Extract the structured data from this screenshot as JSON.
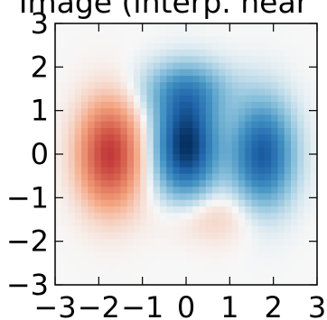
{
  "chart_data": {
    "type": "heatmap",
    "title": "Image (interp. near",
    "xlim": [
      -3,
      3
    ],
    "ylim": [
      -3,
      3
    ],
    "x_ticks": [
      -3,
      -2,
      -1,
      0,
      1,
      2,
      3
    ],
    "y_ticks": [
      -3,
      -2,
      -1,
      0,
      1,
      2,
      3
    ],
    "x_tick_labels": [
      "−3",
      "−2",
      "−1",
      "0",
      "1",
      "2",
      "3"
    ],
    "y_tick_labels": [
      "−3",
      "−2",
      "−1",
      "0",
      "1",
      "2",
      "3"
    ],
    "colormap": "RdBu (diverging: red negative, white zero, blue positive)",
    "interpolation": "nearest",
    "grid_resolution": 40,
    "features": [
      {
        "sign": "negative",
        "center": [
          -1.75,
          0.0
        ],
        "peak": -0.85,
        "note": "red lobe"
      },
      {
        "sign": "positive",
        "center": [
          0.0,
          0.2
        ],
        "peak": 1.0,
        "note": "dark blue lobe"
      },
      {
        "sign": "positive",
        "center": [
          1.75,
          0.0
        ],
        "peak": 0.8,
        "note": "blue lobe"
      },
      {
        "sign": "positive",
        "center": [
          0.0,
          1.5
        ],
        "peak": 0.35,
        "note": "faint blue lobe above"
      },
      {
        "sign": "negative",
        "center": [
          0.5,
          -1.4
        ],
        "peak": -0.2,
        "note": "faint red lobe below"
      }
    ]
  }
}
